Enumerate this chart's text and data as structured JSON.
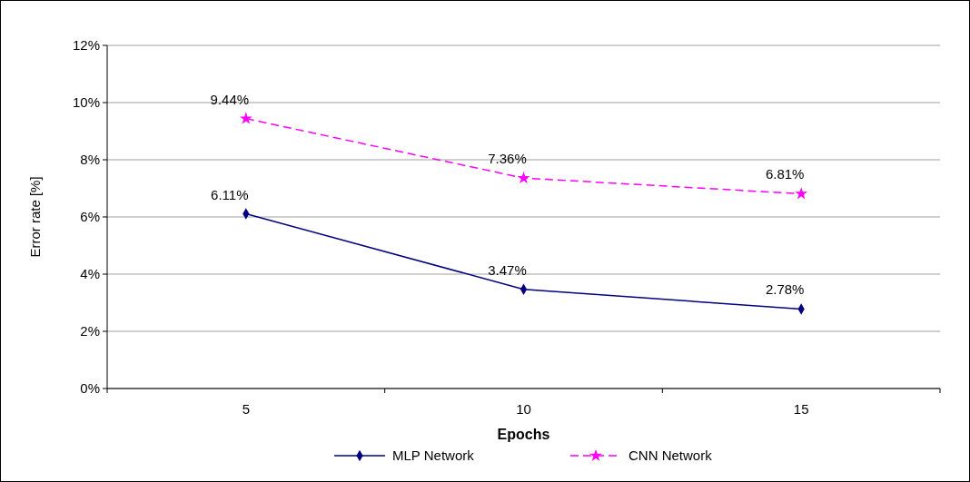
{
  "chart_data": {
    "type": "line",
    "xlabel": "Epochs",
    "ylabel": "Error rate [%]",
    "categories": [
      "5",
      "10",
      "15"
    ],
    "ylim": [
      0,
      12
    ],
    "yticks": [
      {
        "value": 0,
        "label": "0%"
      },
      {
        "value": 2,
        "label": "2%"
      },
      {
        "value": 4,
        "label": "4%"
      },
      {
        "value": 6,
        "label": "6%"
      },
      {
        "value": 8,
        "label": "8%"
      },
      {
        "value": 10,
        "label": "10%"
      },
      {
        "value": 12,
        "label": "12%"
      }
    ],
    "grid": "y",
    "legend": "bottom",
    "series": [
      {
        "name": "MLP Network",
        "color": "#000080",
        "values": [
          6.11,
          3.47,
          2.78
        ],
        "value_labels": [
          "6.11%",
          "3.47%",
          "2.78%"
        ],
        "marker": "diamond",
        "line_style": "solid"
      },
      {
        "name": "CNN Network",
        "color": "#ff00ff",
        "values": [
          9.44,
          7.36,
          6.81
        ],
        "value_labels": [
          "9.44%",
          "7.36%",
          "6.81%"
        ],
        "marker": "star",
        "line_style": "dashed"
      }
    ]
  }
}
